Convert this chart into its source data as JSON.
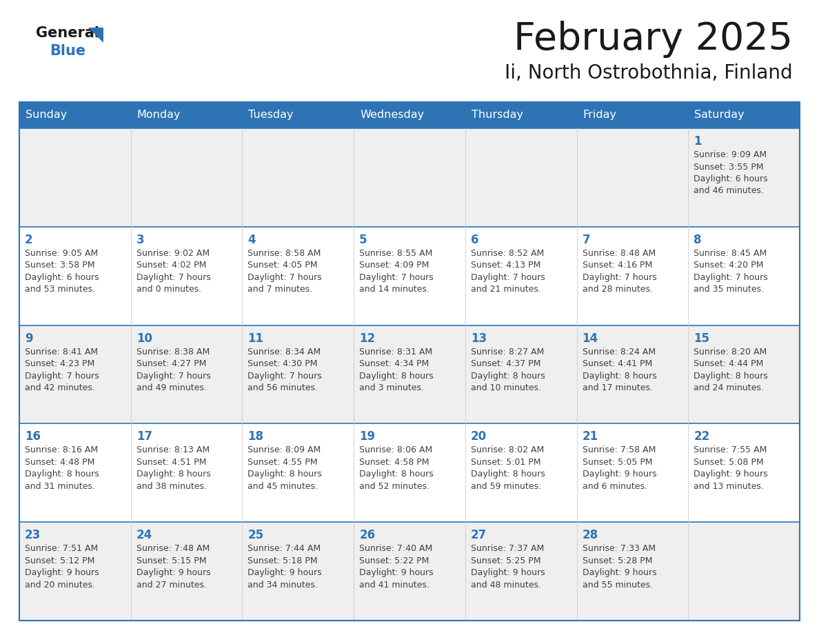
{
  "title": "February 2025",
  "subtitle": "Ii, North Ostrobothnia, Finland",
  "days_of_week": [
    "Sunday",
    "Monday",
    "Tuesday",
    "Wednesday",
    "Thursday",
    "Friday",
    "Saturday"
  ],
  "header_bg": "#2E74B5",
  "header_text": "#FFFFFF",
  "row_bg_light": "#EFEFEF",
  "row_bg_white": "#FFFFFF",
  "cell_border": "#2E74B5",
  "day_number_color": "#2E74B5",
  "text_color": "#404040",
  "title_color": "#1a1a1a",
  "calendar_data": [
    [
      null,
      null,
      null,
      null,
      null,
      null,
      {
        "day": "1",
        "sunrise": "9:09 AM",
        "sunset": "3:55 PM",
        "daylight": "6 hours\nand 46 minutes."
      }
    ],
    [
      {
        "day": "2",
        "sunrise": "9:05 AM",
        "sunset": "3:58 PM",
        "daylight": "6 hours\nand 53 minutes."
      },
      {
        "day": "3",
        "sunrise": "9:02 AM",
        "sunset": "4:02 PM",
        "daylight": "7 hours\nand 0 minutes."
      },
      {
        "day": "4",
        "sunrise": "8:58 AM",
        "sunset": "4:05 PM",
        "daylight": "7 hours\nand 7 minutes."
      },
      {
        "day": "5",
        "sunrise": "8:55 AM",
        "sunset": "4:09 PM",
        "daylight": "7 hours\nand 14 minutes."
      },
      {
        "day": "6",
        "sunrise": "8:52 AM",
        "sunset": "4:13 PM",
        "daylight": "7 hours\nand 21 minutes."
      },
      {
        "day": "7",
        "sunrise": "8:48 AM",
        "sunset": "4:16 PM",
        "daylight": "7 hours\nand 28 minutes."
      },
      {
        "day": "8",
        "sunrise": "8:45 AM",
        "sunset": "4:20 PM",
        "daylight": "7 hours\nand 35 minutes."
      }
    ],
    [
      {
        "day": "9",
        "sunrise": "8:41 AM",
        "sunset": "4:23 PM",
        "daylight": "7 hours\nand 42 minutes."
      },
      {
        "day": "10",
        "sunrise": "8:38 AM",
        "sunset": "4:27 PM",
        "daylight": "7 hours\nand 49 minutes."
      },
      {
        "day": "11",
        "sunrise": "8:34 AM",
        "sunset": "4:30 PM",
        "daylight": "7 hours\nand 56 minutes."
      },
      {
        "day": "12",
        "sunrise": "8:31 AM",
        "sunset": "4:34 PM",
        "daylight": "8 hours\nand 3 minutes."
      },
      {
        "day": "13",
        "sunrise": "8:27 AM",
        "sunset": "4:37 PM",
        "daylight": "8 hours\nand 10 minutes."
      },
      {
        "day": "14",
        "sunrise": "8:24 AM",
        "sunset": "4:41 PM",
        "daylight": "8 hours\nand 17 minutes."
      },
      {
        "day": "15",
        "sunrise": "8:20 AM",
        "sunset": "4:44 PM",
        "daylight": "8 hours\nand 24 minutes."
      }
    ],
    [
      {
        "day": "16",
        "sunrise": "8:16 AM",
        "sunset": "4:48 PM",
        "daylight": "8 hours\nand 31 minutes."
      },
      {
        "day": "17",
        "sunrise": "8:13 AM",
        "sunset": "4:51 PM",
        "daylight": "8 hours\nand 38 minutes."
      },
      {
        "day": "18",
        "sunrise": "8:09 AM",
        "sunset": "4:55 PM",
        "daylight": "8 hours\nand 45 minutes."
      },
      {
        "day": "19",
        "sunrise": "8:06 AM",
        "sunset": "4:58 PM",
        "daylight": "8 hours\nand 52 minutes."
      },
      {
        "day": "20",
        "sunrise": "8:02 AM",
        "sunset": "5:01 PM",
        "daylight": "8 hours\nand 59 minutes."
      },
      {
        "day": "21",
        "sunrise": "7:58 AM",
        "sunset": "5:05 PM",
        "daylight": "9 hours\nand 6 minutes."
      },
      {
        "day": "22",
        "sunrise": "7:55 AM",
        "sunset": "5:08 PM",
        "daylight": "9 hours\nand 13 minutes."
      }
    ],
    [
      {
        "day": "23",
        "sunrise": "7:51 AM",
        "sunset": "5:12 PM",
        "daylight": "9 hours\nand 20 minutes."
      },
      {
        "day": "24",
        "sunrise": "7:48 AM",
        "sunset": "5:15 PM",
        "daylight": "9 hours\nand 27 minutes."
      },
      {
        "day": "25",
        "sunrise": "7:44 AM",
        "sunset": "5:18 PM",
        "daylight": "9 hours\nand 34 minutes."
      },
      {
        "day": "26",
        "sunrise": "7:40 AM",
        "sunset": "5:22 PM",
        "daylight": "9 hours\nand 41 minutes."
      },
      {
        "day": "27",
        "sunrise": "7:37 AM",
        "sunset": "5:25 PM",
        "daylight": "9 hours\nand 48 minutes."
      },
      {
        "day": "28",
        "sunrise": "7:33 AM",
        "sunset": "5:28 PM",
        "daylight": "9 hours\nand 55 minutes."
      },
      null
    ]
  ]
}
